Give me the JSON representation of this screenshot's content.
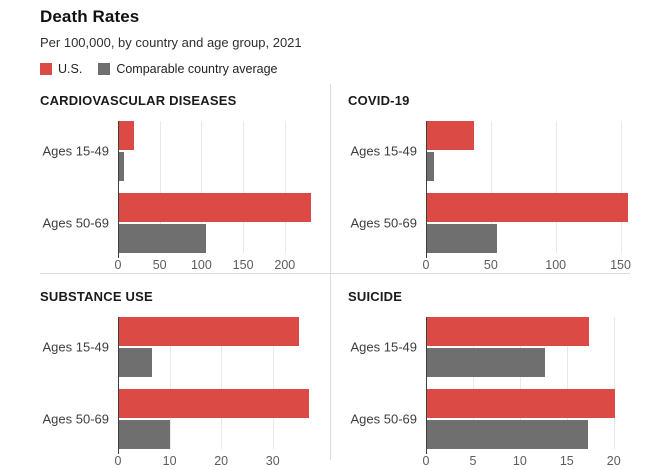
{
  "header": {
    "title": "Death Rates",
    "subtitle": "Per 100,000, by country and age group, 2021"
  },
  "legend": [
    {
      "label": "U.S.",
      "color": "#db4a45"
    },
    {
      "label": "Comparable country average",
      "color": "#6f6f6f"
    }
  ],
  "colors": {
    "us": "#db4a45",
    "avg": "#6f6f6f",
    "grid": "#e9e9e9",
    "axis": "#3f3f3f",
    "divider": "#dcdcdc"
  },
  "chart_data": [
    {
      "type": "bar",
      "orientation": "horizontal",
      "title": "CARDIOVASCULAR DISEASES",
      "categories": [
        "Ages 15-49",
        "Ages 50-69"
      ],
      "series": [
        {
          "name": "U.S.",
          "values": [
            19,
            231
          ]
        },
        {
          "name": "Comparable country average",
          "values": [
            7,
            105
          ]
        }
      ],
      "ticks": [
        0,
        50,
        100,
        150,
        200
      ],
      "xlim": [
        0,
        235
      ],
      "grid": true,
      "legend_position": "top-of-figure"
    },
    {
      "type": "bar",
      "orientation": "horizontal",
      "title": "COVID-19",
      "categories": [
        "Ages 15-49",
        "Ages 50-69"
      ],
      "series": [
        {
          "name": "U.S.",
          "values": [
            37,
            156
          ]
        },
        {
          "name": "Comparable country average",
          "values": [
            6,
            55
          ]
        }
      ],
      "ticks": [
        0,
        50,
        100,
        150
      ],
      "xlim": [
        0,
        165
      ],
      "grid": true,
      "legend_position": "top-of-figure"
    },
    {
      "type": "bar",
      "orientation": "horizontal",
      "title": "SUBSTANCE USE",
      "categories": [
        "Ages 15-49",
        "Ages 50-69"
      ],
      "series": [
        {
          "name": "U.S.",
          "values": [
            35,
            37
          ]
        },
        {
          "name": "Comparable country average",
          "values": [
            6.5,
            10
          ]
        }
      ],
      "ticks": [
        0,
        10,
        20,
        30
      ],
      "xlim": [
        0,
        38
      ],
      "grid": true,
      "legend_position": "top-of-figure"
    },
    {
      "type": "bar",
      "orientation": "horizontal",
      "title": "SUICIDE",
      "categories": [
        "Ages 15-49",
        "Ages 50-69"
      ],
      "series": [
        {
          "name": "U.S.",
          "values": [
            17.4,
            20.1
          ]
        },
        {
          "name": "Comparable country average",
          "values": [
            12.7,
            17.3
          ]
        }
      ],
      "ticks": [
        0,
        5,
        10,
        15,
        20
      ],
      "xlim": [
        0,
        22.8
      ],
      "grid": true,
      "legend_position": "top-of-figure"
    }
  ]
}
